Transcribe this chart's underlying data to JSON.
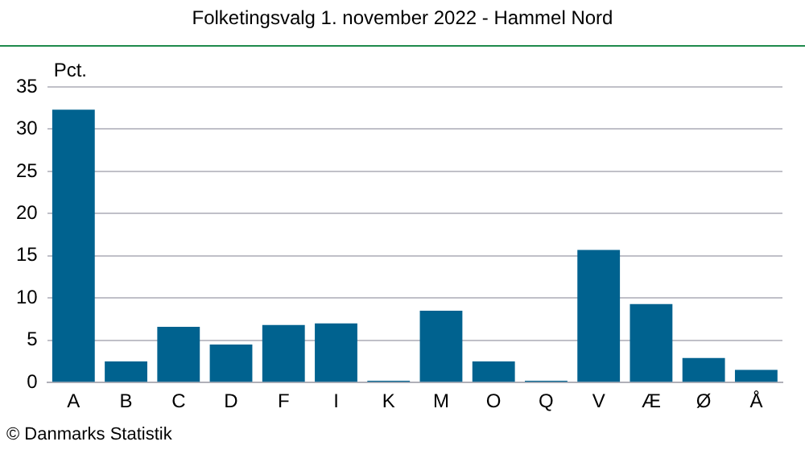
{
  "chart_data": {
    "type": "bar",
    "title": "Folketingsvalg 1. november 2022 - Hammel Nord",
    "ylabel": "Pct.",
    "categories": [
      "A",
      "B",
      "C",
      "D",
      "F",
      "I",
      "K",
      "M",
      "O",
      "Q",
      "V",
      "Æ",
      "Ø",
      "Å"
    ],
    "values": [
      32.3,
      2.5,
      6.6,
      4.5,
      6.8,
      7.0,
      0.2,
      8.5,
      2.5,
      0.2,
      15.7,
      9.3,
      2.9,
      1.5
    ],
    "color": "#00628f",
    "ylim": [
      0,
      35
    ],
    "yticks": [
      0,
      5,
      10,
      15,
      20,
      25,
      30,
      35
    ],
    "grid": "y",
    "legend": false,
    "annotations": [
      "© Danmarks Statistik"
    ]
  }
}
